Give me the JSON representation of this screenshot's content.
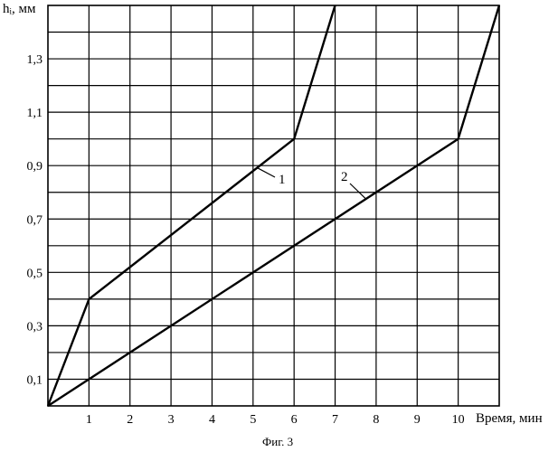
{
  "chart_data": {
    "type": "line",
    "xlabel": "Время, мин",
    "ylabel": "hᵢ, мм",
    "caption": "Фиг. 3",
    "xlim": [
      0,
      11
    ],
    "ylim": [
      0,
      1.5
    ],
    "x_tick_labels": [
      "1",
      "2",
      "3",
      "4",
      "5",
      "6",
      "7",
      "8",
      "9",
      "10"
    ],
    "x_ticks": [
      1,
      2,
      3,
      4,
      5,
      6,
      7,
      8,
      9,
      10
    ],
    "y_tick_labels": [
      "0,1",
      "0,3",
      "0,5",
      "0,7",
      "0,9",
      "1,1",
      "1,3"
    ],
    "y_ticks": [
      0.1,
      0.3,
      0.5,
      0.7,
      0.9,
      1.1,
      1.3
    ],
    "grid": true,
    "series": [
      {
        "name": "1",
        "x": [
          0,
          1,
          6,
          7
        ],
        "y": [
          0,
          0.4,
          1.0,
          1.5
        ]
      },
      {
        "name": "2",
        "x": [
          0,
          10,
          11
        ],
        "y": [
          0,
          1.0,
          1.5
        ]
      }
    ],
    "colors": {
      "line": "#000000",
      "grid": "#000000"
    }
  }
}
